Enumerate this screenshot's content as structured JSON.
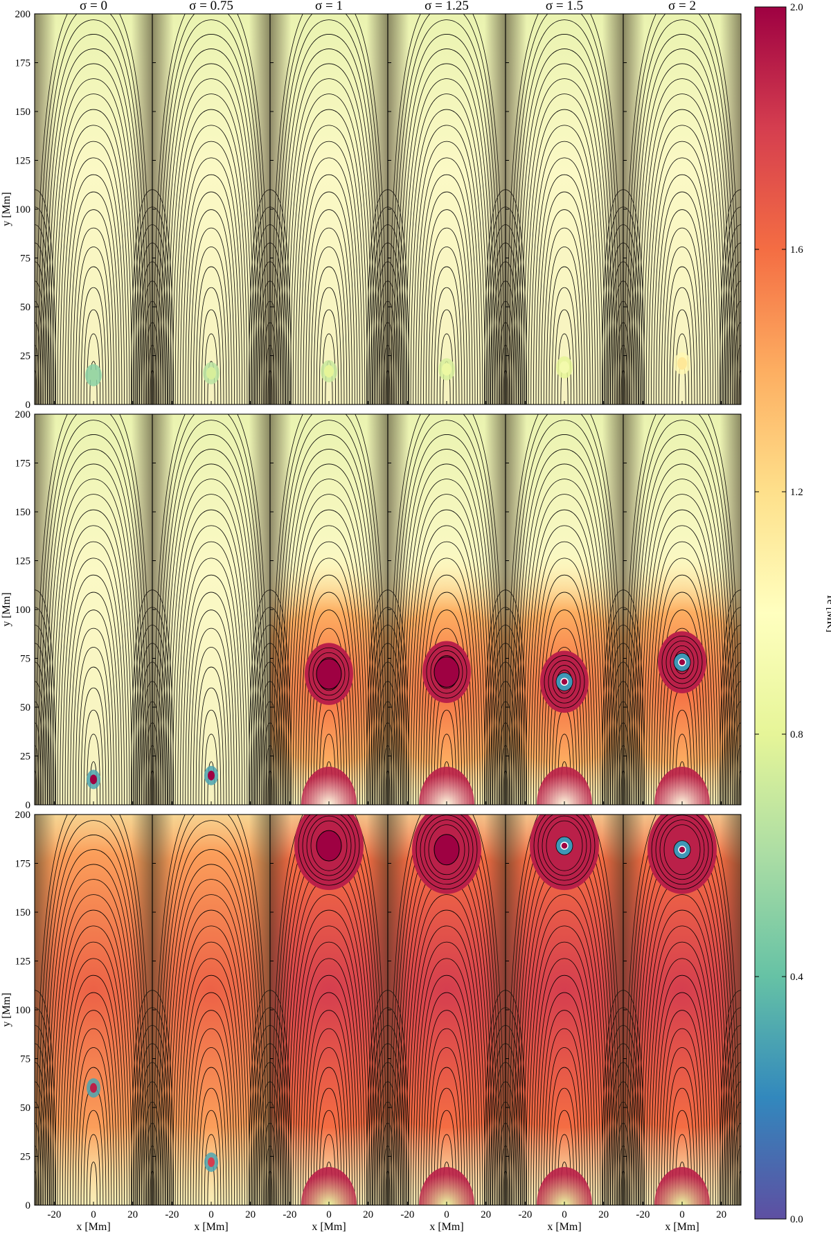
{
  "chart_data": {
    "type": "heatmap",
    "description_free": true,
    "columns": [
      {
        "sigma_title": "σ = 0",
        "sigma": 0
      },
      {
        "sigma_title": "σ = 0.75",
        "sigma": 0.75
      },
      {
        "sigma_title": "σ = 1",
        "sigma": 1
      },
      {
        "sigma_title": "σ = 1.25",
        "sigma": 1.25
      },
      {
        "sigma_title": "σ = 1.5",
        "sigma": 1.5
      },
      {
        "sigma_title": "σ = 2",
        "sigma": 2
      }
    ],
    "rows": 3,
    "xlabel": "x [Mm]",
    "ylabel": "y [Mm]",
    "xlim": [
      -30,
      30
    ],
    "ylim": [
      0,
      200
    ],
    "xticks": [
      -20,
      0,
      20
    ],
    "yticks": [
      0,
      25,
      50,
      75,
      100,
      125,
      150,
      175,
      200
    ],
    "colorbar": {
      "label": "Te [MK]",
      "range": [
        0.0,
        2.0
      ],
      "ticks": [
        "0.0",
        "0.4",
        "0.8",
        "1.2",
        "1.6",
        "2.0"
      ],
      "colormap": "Spectral_r",
      "stops": [
        "#5e4fa2",
        "#3288bd",
        "#66c2a5",
        "#abdda4",
        "#e6f598",
        "#ffffbf",
        "#fee08b",
        "#fdae61",
        "#f46d43",
        "#d53e4f",
        "#9e0142"
      ]
    },
    "panels": [
      [
        {
          "core_y": 15,
          "core_te": 0.55,
          "plasmoid": false
        },
        {
          "core_y": 16,
          "core_te": 0.75,
          "plasmoid": false
        },
        {
          "core_y": 17,
          "core_te": 0.8,
          "plasmoid": false
        },
        {
          "core_y": 18,
          "core_te": 0.85,
          "plasmoid": false
        },
        {
          "core_y": 19,
          "core_te": 0.9,
          "plasmoid": false
        },
        {
          "core_y": 21,
          "core_te": 1.15,
          "plasmoid": false
        }
      ],
      [
        {
          "core_y": 13,
          "core_te": 2.0,
          "plasmoid": false
        },
        {
          "core_y": 15,
          "core_te": 2.0,
          "plasmoid": false
        },
        {
          "core_y": 67,
          "core_te": 2.0,
          "plasmoid": true
        },
        {
          "core_y": 68,
          "core_te": 2.0,
          "plasmoid": true
        },
        {
          "core_y": 63,
          "core_te": 2.0,
          "plasmoid": true
        },
        {
          "core_y": 73,
          "core_te": 2.0,
          "plasmoid": true
        }
      ],
      [
        {
          "core_y": 60,
          "core_te": 1.9,
          "plasmoid": false
        },
        {
          "core_y": 22,
          "core_te": 1.8,
          "plasmoid": false
        },
        {
          "core_y": 184,
          "core_te": 2.0,
          "plasmoid": true
        },
        {
          "core_y": 182,
          "core_te": 2.0,
          "plasmoid": true
        },
        {
          "core_y": 184,
          "core_te": 2.0,
          "plasmoid": true
        },
        {
          "core_y": 182,
          "core_te": 2.0,
          "plasmoid": true
        }
      ]
    ]
  }
}
